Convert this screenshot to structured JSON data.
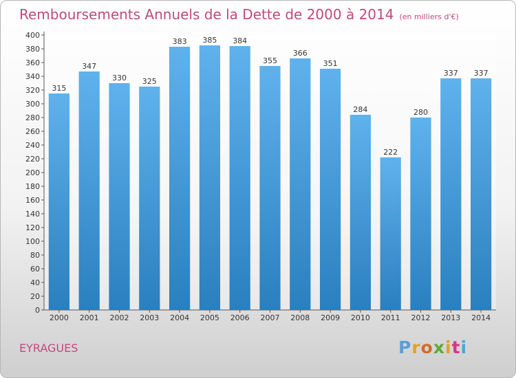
{
  "header": {
    "title": "Remboursements Annuels de la Dette de 2000 à 2014",
    "subtitle": "(en milliers d'€)"
  },
  "footer": {
    "commune": "EYRAGUES",
    "logo_text": "Proxiti"
  },
  "colors": {
    "title": "#c2487d",
    "bar_top": "#5fb2ec",
    "bar_bottom": "#2a7fbe",
    "logo_letters": [
      "#5a9fd4",
      "#e0a22a",
      "#d36b2a",
      "#5fa83a",
      "#e0a22a",
      "#d9338a",
      "#4aa6d8"
    ]
  },
  "chart_data": {
    "type": "bar",
    "categories": [
      "2000",
      "2001",
      "2002",
      "2003",
      "2004",
      "2005",
      "2006",
      "2007",
      "2008",
      "2009",
      "2010",
      "2011",
      "2012",
      "2013",
      "2014"
    ],
    "values": [
      315,
      347,
      330,
      325,
      383,
      385,
      384,
      355,
      366,
      351,
      284,
      222,
      280,
      337,
      337
    ],
    "ylim": [
      0,
      400
    ],
    "ytick_step": 20,
    "grid": false,
    "data_labels": true
  }
}
